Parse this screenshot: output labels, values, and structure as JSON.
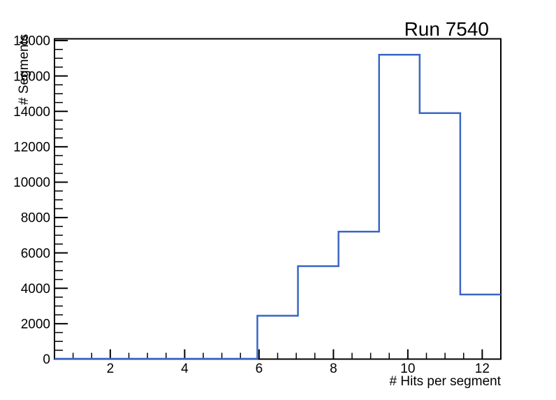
{
  "chart_data": {
    "type": "bar",
    "style": "step-histogram",
    "title": "Run 7540",
    "xlabel": "# Hits per segment",
    "ylabel": "# Segments",
    "xlim": [
      0.5,
      12.5
    ],
    "ylim": [
      0,
      18100
    ],
    "n_bins": 11,
    "bin_edges": [
      0.5,
      1.5909,
      2.6818,
      3.7727,
      4.8636,
      5.9545,
      7.0455,
      8.1364,
      9.2273,
      10.3182,
      11.4091,
      12.5
    ],
    "counts": [
      0,
      0,
      0,
      0,
      0,
      2450,
      5250,
      7200,
      17200,
      13900,
      3650
    ],
    "x_tick_values": [
      2,
      4,
      6,
      8,
      10,
      12
    ],
    "x_tick_labels": [
      "2",
      "4",
      "6",
      "8",
      "10",
      "12"
    ],
    "x_minor_step": 0.5,
    "y_tick_values": [
      0,
      2000,
      4000,
      6000,
      8000,
      10000,
      12000,
      14000,
      16000,
      18000
    ],
    "y_tick_labels": [
      "0",
      "2000",
      "4000",
      "6000",
      "8000",
      "10000",
      "12000",
      "14000",
      "16000",
      "18000"
    ],
    "y_minor_step": 500,
    "grid": false,
    "legend": null,
    "line_color": "#3a66c4",
    "frame_color": "#000000",
    "text_color": "#000000",
    "background_color": "#ffffff"
  }
}
